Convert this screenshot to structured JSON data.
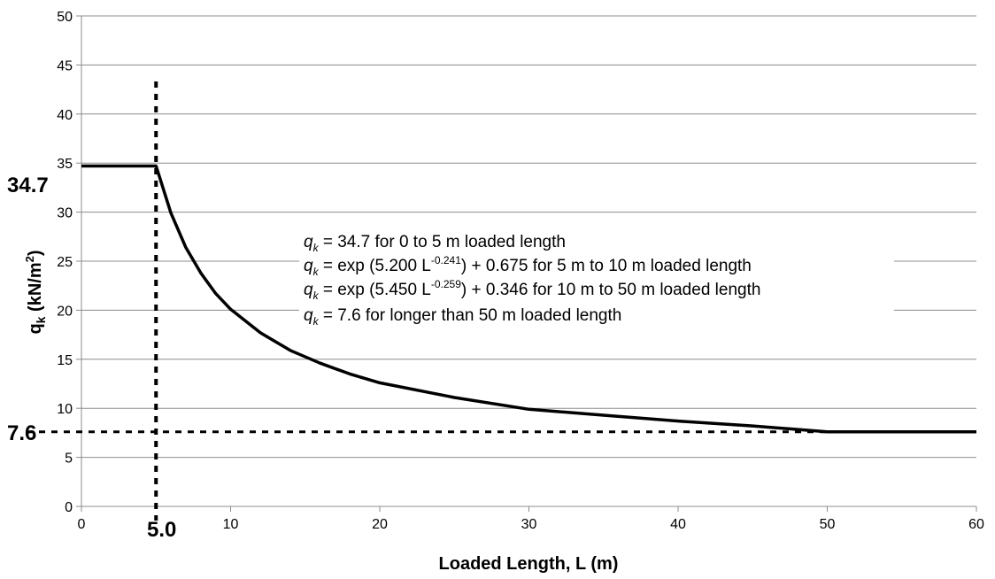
{
  "chart_data": {
    "type": "line",
    "xlabel": "Loaded Length, L (m)",
    "ylabel_main": "q",
    "ylabel_sub": "k",
    "ylabel_unit_open": "(kN/m",
    "ylabel_unit_sup": "2",
    "ylabel_unit_close": ")",
    "xlim": [
      0,
      60
    ],
    "ylim": [
      0,
      50
    ],
    "xticks": [
      "0",
      "10",
      "20",
      "30",
      "40",
      "50",
      "60"
    ],
    "yticks": [
      "0",
      "5",
      "10",
      "15",
      "20",
      "25",
      "30",
      "35",
      "40",
      "45",
      "50"
    ],
    "grid": "horizontal",
    "series": [
      {
        "x": [
          0,
          5,
          6,
          7,
          8,
          9,
          10,
          12,
          14,
          16,
          18,
          20,
          25,
          30,
          35,
          40,
          45,
          50,
          55,
          60
        ],
        "y": [
          34.7,
          34.7,
          29.9,
          26.4,
          23.8,
          21.7,
          20.1,
          17.7,
          15.9,
          14.6,
          13.5,
          12.6,
          11.1,
          9.9,
          9.3,
          8.7,
          8.2,
          7.6,
          7.6,
          7.6
        ]
      }
    ],
    "reference_lines": [
      {
        "orientation": "vertical",
        "value": 5.0,
        "label": "5.0"
      },
      {
        "orientation": "horizontal",
        "value": 7.6,
        "label": "7.6"
      }
    ],
    "callout_y_value": "34.7",
    "equations": [
      {
        "var": "q",
        "sub": "k",
        "pre": " = 34.7 for 0 to 5 m loaded length",
        "sup": "",
        "post": ""
      },
      {
        "var": "q",
        "sub": "k",
        "pre": " = exp (5.200 L",
        "sup": "-0.241",
        "post": ") + 0.675 for 5 m to 10 m loaded length"
      },
      {
        "var": "q",
        "sub": "k",
        "pre": " = exp (5.450 L",
        "sup": "-0.259",
        "post": ") + 0.346 for 10 m to 50 m loaded length"
      },
      {
        "var": "q",
        "sub": "k",
        "pre": " = 7.6 for longer than 50 m loaded length",
        "sup": "",
        "post": ""
      }
    ]
  }
}
